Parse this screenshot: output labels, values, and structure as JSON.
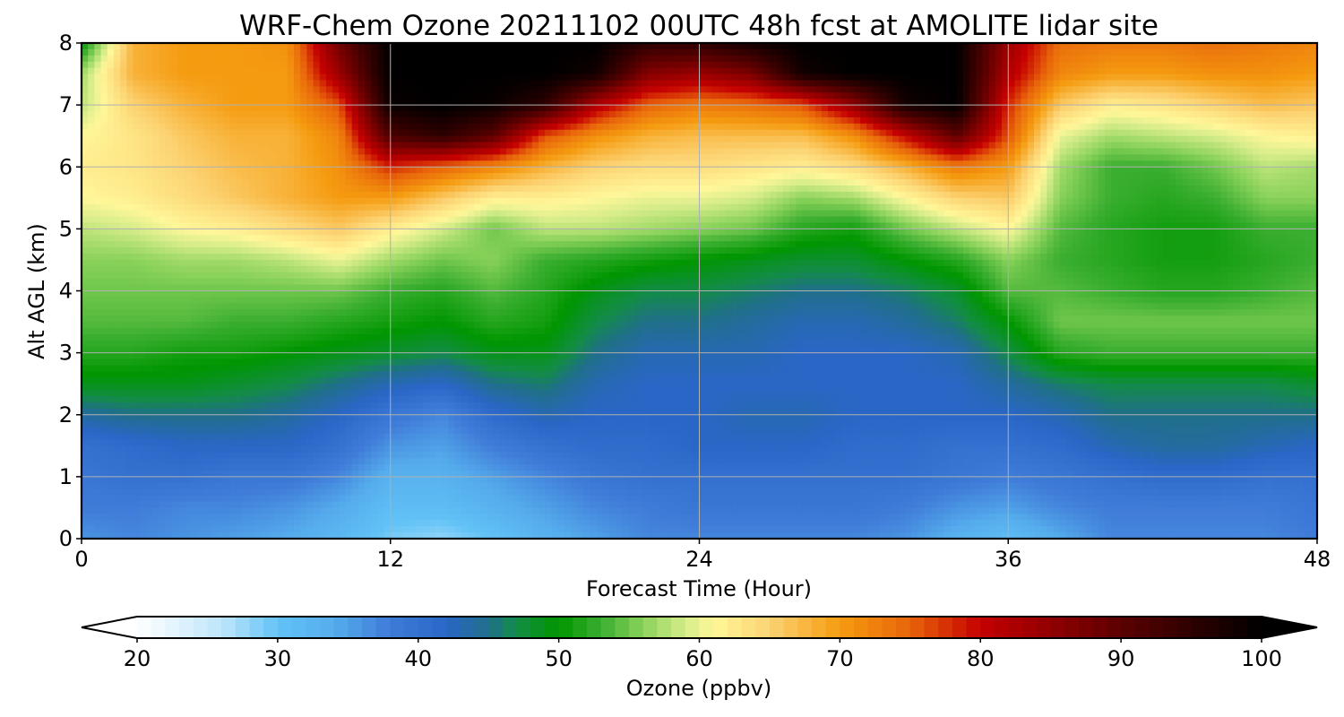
{
  "chart_data": {
    "type": "heatmap",
    "title": "WRF-Chem Ozone  20211102 00UTC 48h fcst at AMOLITE lidar site",
    "xlabel": "Forecast Time (Hour)",
    "ylabel": "Alt AGL (km)",
    "xlim": [
      0,
      48
    ],
    "ylim": [
      0,
      8
    ],
    "x_ticks": [
      "0",
      "12",
      "24",
      "36",
      "48"
    ],
    "y_ticks": [
      "0",
      "1",
      "2",
      "3",
      "4",
      "5",
      "6",
      "7",
      "8"
    ],
    "grid": true,
    "colorbar": {
      "label": "Ozone  (ppbv)",
      "range": [
        20,
        100
      ],
      "ticks": [
        "20",
        "30",
        "40",
        "50",
        "60",
        "70",
        "80",
        "90",
        "100"
      ],
      "extend": "both",
      "stops": [
        {
          "v": 20,
          "c": "#ffffff"
        },
        {
          "v": 26,
          "c": "#bfe6fb"
        },
        {
          "v": 30,
          "c": "#62c2f6"
        },
        {
          "v": 34,
          "c": "#55acec"
        },
        {
          "v": 38,
          "c": "#3f7bd8"
        },
        {
          "v": 42,
          "c": "#2a66c6"
        },
        {
          "v": 45,
          "c": "#206f8a"
        },
        {
          "v": 47,
          "c": "#138c46"
        },
        {
          "v": 50,
          "c": "#009600"
        },
        {
          "v": 53,
          "c": "#3aae30"
        },
        {
          "v": 56,
          "c": "#8ad25a"
        },
        {
          "v": 59,
          "c": "#d6ec8a"
        },
        {
          "v": 61,
          "c": "#fff799"
        },
        {
          "v": 65,
          "c": "#fcd373"
        },
        {
          "v": 70,
          "c": "#f59b10"
        },
        {
          "v": 75,
          "c": "#e8640a"
        },
        {
          "v": 80,
          "c": "#c50000"
        },
        {
          "v": 90,
          "c": "#5c0000"
        },
        {
          "v": 100,
          "c": "#000000"
        }
      ]
    },
    "x": [
      0,
      2,
      4,
      6,
      8,
      10,
      12,
      14,
      16,
      18,
      20,
      22,
      24,
      26,
      28,
      30,
      32,
      34,
      36,
      38,
      40,
      42,
      44,
      46,
      48
    ],
    "y": [
      0,
      0.5,
      1,
      1.5,
      2,
      2.5,
      3,
      3.5,
      4,
      4.5,
      5,
      5.5,
      6,
      6.5,
      7,
      7.5,
      8
    ],
    "z": [
      [
        36,
        37,
        36,
        35,
        34,
        32,
        29,
        28,
        30,
        33,
        35,
        37,
        37,
        37,
        37,
        37,
        36,
        33,
        31,
        34,
        37,
        37,
        37,
        37,
        38
      ],
      [
        38,
        38,
        37,
        37,
        36,
        34,
        31,
        31,
        33,
        35,
        37,
        38,
        39,
        39,
        39,
        39,
        38,
        36,
        35,
        37,
        38,
        38,
        38,
        38,
        39
      ],
      [
        39,
        40,
        40,
        39,
        39,
        37,
        33,
        33,
        35,
        37,
        39,
        40,
        40,
        40,
        40,
        40,
        40,
        39,
        38,
        39,
        40,
        41,
        41,
        40,
        40
      ],
      [
        40,
        41,
        42,
        42,
        42,
        40,
        36,
        35,
        38,
        40,
        41,
        41,
        42,
        42,
        42,
        41,
        41,
        40,
        40,
        41,
        43,
        44,
        44,
        43,
        42
      ],
      [
        44,
        45,
        45,
        45,
        44,
        42,
        39,
        37,
        41,
        43,
        42,
        42,
        42,
        43,
        43,
        42,
        42,
        42,
        42,
        43,
        45,
        45,
        45,
        45,
        45
      ],
      [
        49,
        49,
        49,
        48,
        47,
        45,
        43,
        42,
        45,
        46,
        43,
        42,
        42,
        42,
        42,
        42,
        42,
        42,
        44,
        46,
        47,
        47,
        47,
        47,
        48
      ],
      [
        52,
        52,
        51,
        51,
        50,
        49,
        48,
        47,
        49,
        49,
        45,
        43,
        43,
        43,
        42,
        42,
        42,
        43,
        47,
        52,
        53,
        53,
        53,
        53,
        53
      ],
      [
        54,
        54,
        54,
        53,
        53,
        52,
        51,
        50,
        52,
        51,
        47,
        45,
        45,
        44,
        43,
        43,
        44,
        46,
        50,
        55,
        55,
        55,
        55,
        55,
        55
      ],
      [
        55,
        55,
        55,
        55,
        55,
        55,
        53,
        52,
        54,
        52,
        49,
        47,
        47,
        46,
        45,
        45,
        46,
        48,
        54,
        54,
        53,
        52,
        52,
        53,
        54
      ],
      [
        56,
        56,
        57,
        57,
        58,
        60,
        57,
        55,
        56,
        53,
        52,
        51,
        50,
        49,
        48,
        48,
        50,
        52,
        56,
        53,
        52,
        51,
        51,
        52,
        53
      ],
      [
        58,
        59,
        61,
        62,
        64,
        66,
        62,
        59,
        55,
        58,
        58,
        57,
        56,
        55,
        52,
        51,
        55,
        58,
        61,
        54,
        52,
        51,
        51,
        53,
        53
      ],
      [
        61,
        62,
        64,
        66,
        68,
        70,
        70,
        66,
        62,
        62,
        61,
        60,
        60,
        59,
        56,
        57,
        61,
        65,
        66,
        56,
        53,
        52,
        53,
        56,
        56
      ],
      [
        62,
        63,
        65,
        67,
        68,
        71,
        78,
        75,
        72,
        68,
        65,
        64,
        64,
        63,
        62,
        64,
        68,
        73,
        70,
        57,
        53,
        53,
        55,
        58,
        57
      ],
      [
        61,
        63,
        66,
        68,
        68,
        72,
        92,
        95,
        90,
        76,
        71,
        68,
        67,
        67,
        67,
        71,
        80,
        90,
        76,
        60,
        57,
        58,
        59,
        61,
        62
      ],
      [
        58,
        65,
        68,
        70,
        70,
        76,
        99,
        100,
        99,
        95,
        82,
        75,
        73,
        74,
        76,
        85,
        98,
        100,
        78,
        66,
        62,
        63,
        65,
        67,
        66
      ],
      [
        57,
        68,
        70,
        70,
        70,
        84,
        100,
        100,
        100,
        100,
        98,
        86,
        84,
        87,
        98,
        100,
        100,
        100,
        82,
        72,
        70,
        70,
        71,
        71,
        70
      ],
      [
        50,
        68,
        70,
        70,
        71,
        88,
        100,
        100,
        100,
        100,
        100,
        95,
        95,
        98,
        100,
        100,
        100,
        100,
        84,
        74,
        73,
        73,
        74,
        73,
        72
      ]
    ]
  }
}
